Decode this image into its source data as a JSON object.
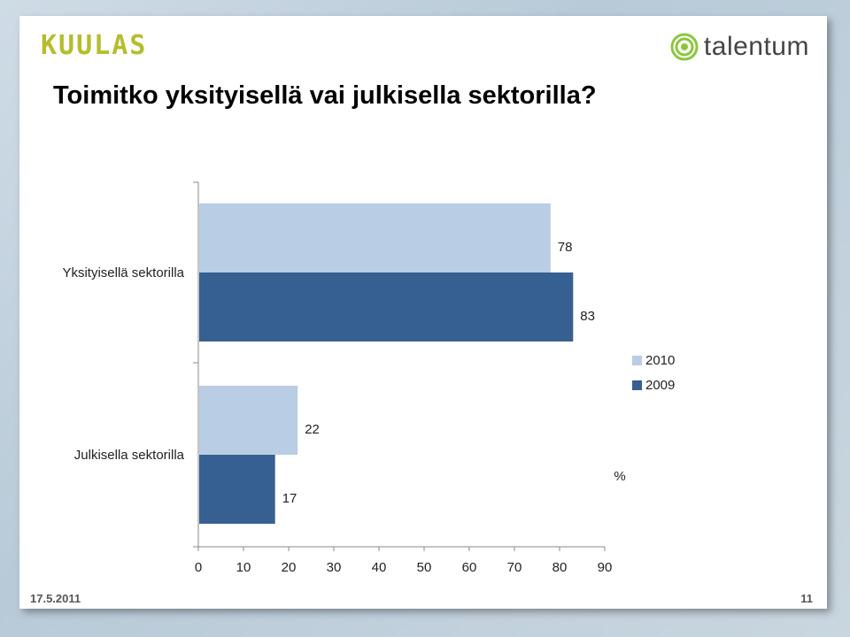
{
  "header": {
    "left_logo": "KUULAS",
    "right_logo": "talentum",
    "title": "Toimitko yksityisellä vai julkisella sektorilla?"
  },
  "footer": {
    "date": "17.5.2011",
    "page": "11"
  },
  "colors": {
    "series_2010": "#b9cde4",
    "series_2009": "#376092"
  },
  "chart_data": {
    "type": "bar",
    "orientation": "horizontal",
    "categories": [
      "Yksityisellä sektorilla",
      "Julkisella sektorilla"
    ],
    "series": [
      {
        "name": "2010",
        "values": [
          78,
          22
        ]
      },
      {
        "name": "2009",
        "values": [
          83,
          17
        ]
      }
    ],
    "xlabel": "%",
    "xlim": [
      0,
      90
    ],
    "xticks": [
      0,
      10,
      20,
      30,
      40,
      50,
      60,
      70,
      80,
      90
    ],
    "legend_position": "right",
    "grid": false
  }
}
